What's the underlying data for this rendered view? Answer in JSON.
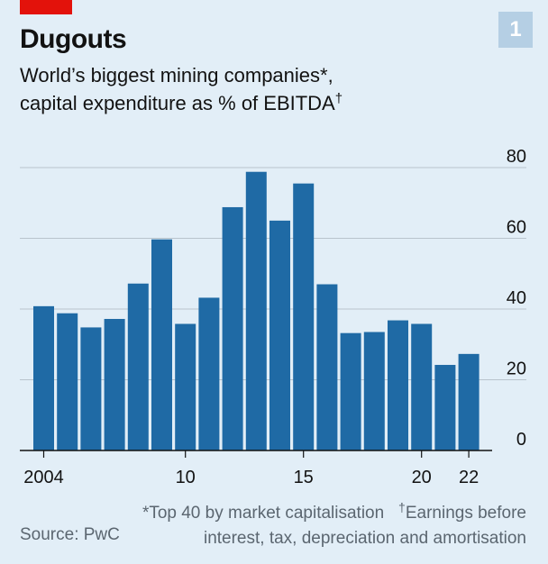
{
  "header": {
    "title": "Dugouts",
    "badge": "1",
    "subtitle_line1": "World’s biggest mining companies*,",
    "subtitle_line2": "capital expenditure as % of EBITDA",
    "subtitle_dagger": "†"
  },
  "footer": {
    "source": "Source: PwC",
    "note1": "*Top 40 by market capitalisation",
    "note2_dagger": "†",
    "note2_line1": "Earnings before",
    "note2_line2": "interest, tax, depreciation and amortisation"
  },
  "colors": {
    "bar": "#1f6aa5",
    "grid": "#b9c4cc",
    "axis": "#121212",
    "accent": "#e3120b",
    "background": "#e2eef7"
  },
  "chart_data": {
    "type": "bar",
    "title": "World’s biggest mining companies*, capital expenditure as % of EBITDA†",
    "x": [
      2004,
      2005,
      2006,
      2007,
      2008,
      2009,
      2010,
      2011,
      2012,
      2013,
      2014,
      2015,
      2016,
      2017,
      2018,
      2019,
      2020,
      2021,
      2022
    ],
    "values": [
      40.8,
      38.8,
      34.8,
      37.2,
      47.2,
      59.7,
      35.8,
      43.2,
      68.8,
      78.8,
      65,
      75.5,
      47,
      33.2,
      33.5,
      36.8,
      35.8,
      24.2,
      27.3
    ],
    "x_tick_labels": [
      "2004",
      "10",
      "15",
      "20",
      "22"
    ],
    "x_tick_years": [
      2004,
      2010,
      2015,
      2020,
      2022
    ],
    "y_ticks": [
      0,
      20,
      40,
      60,
      80
    ],
    "ylim": [
      0,
      80
    ],
    "y_axis_side": "right",
    "grid": true,
    "xlabel": "",
    "ylabel": ""
  }
}
